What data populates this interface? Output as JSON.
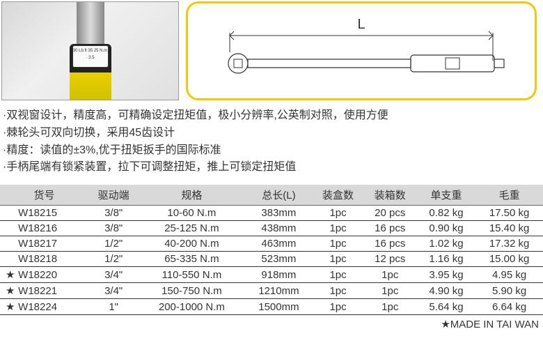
{
  "diagram": {
    "length_label": "L"
  },
  "gauge_text": "30  Lb.ft\n35 25 N.m\n· 3.5",
  "features": [
    "双视窗设计，精度高，可精确设定扭矩值，极小分辨率,公英制对照，使用方便",
    "棘轮头可双向切换，采用45齿设计",
    "精度：读值的±3%,优于扭矩扳手的国际标准",
    "手柄尾端有锁紧装置，拉下可调整扭矩，推上可锁定扭矩值"
  ],
  "table": {
    "headers": [
      "货号",
      "驱动端",
      "规格",
      "总长(L)",
      "装盒数",
      "装箱数",
      "单支重",
      "毛重"
    ],
    "header_bg": "#d9d9d9",
    "rows": [
      {
        "star": false,
        "cells": [
          "W18215",
          "3/8\"",
          "10-60 N.m",
          "383mm",
          "1pc",
          "20 pcs",
          "0.82 kg",
          "17.50 kg"
        ]
      },
      {
        "star": false,
        "cells": [
          "W18216",
          "3/8\"",
          "25-125 N.m",
          "438mm",
          "1pc",
          "16 pcs",
          "0.90 kg",
          "15.40 kg"
        ]
      },
      {
        "star": false,
        "cells": [
          "W18217",
          "1/2\"",
          "40-200 N.m",
          "463mm",
          "1pc",
          "16 pcs",
          "1.02 kg",
          "17.32 kg"
        ]
      },
      {
        "star": false,
        "cells": [
          "W18218",
          "1/2\"",
          "65-335 N.m",
          "523mm",
          "1pc",
          "12 pcs",
          "1.16 kg",
          "15.00 kg"
        ]
      },
      {
        "star": true,
        "cells": [
          "W18220",
          "3/4\"",
          "110-550 N.m",
          "918mm",
          "1pc",
          "1pc",
          "3.95 kg",
          "4.95 kg"
        ]
      },
      {
        "star": true,
        "cells": [
          "W18221",
          "3/4\"",
          "150-750 N.m",
          "1210mm",
          "1pc",
          "1pc",
          "4.90 kg",
          "5.90 kg"
        ]
      },
      {
        "star": true,
        "cells": [
          "W18224",
          "1\"",
          "200-1000 N.m",
          "1500mm",
          "1pc",
          "1pc",
          "5.64 kg",
          "6.64 kg"
        ]
      }
    ]
  },
  "footer": "★MADE IN  TAI WAN",
  "colors": {
    "diagram_border": "#f5c800",
    "header_bg": "#d9d9d9",
    "rule": "#333333"
  }
}
